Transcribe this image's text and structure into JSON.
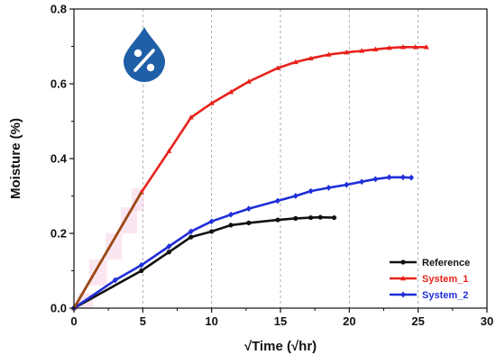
{
  "chart_data": {
    "type": "line",
    "xlabel": "√Time (√hr)",
    "ylabel": "Moisture (%)",
    "xlim": [
      0,
      30
    ],
    "ylim": [
      0,
      0.8
    ],
    "x_ticks": [
      0,
      5,
      10,
      15,
      20,
      25,
      30
    ],
    "x_tick_labels": [
      "0",
      "5",
      "10",
      "15",
      "20",
      "25",
      "30"
    ],
    "y_ticks": [
      0,
      0.2,
      0.4,
      0.6,
      0.8
    ],
    "y_tick_labels": [
      "0.0",
      "0.2",
      "0.4",
      "0.6",
      "0.8"
    ],
    "grid": "vertical dashed at x ticks",
    "legend_position": "bottom-right",
    "icon": "moisture-percent-drop-icon",
    "icon_color": "#1f5fa8",
    "series": [
      {
        "name": "Reference",
        "color": "#111111",
        "marker": "circle",
        "x": [
          0,
          4.9,
          6.9,
          8.5,
          10.0,
          11.4,
          12.7,
          14.8,
          16.1,
          17.2,
          17.9,
          18.9
        ],
        "y": [
          0,
          0.1,
          0.15,
          0.19,
          0.205,
          0.222,
          0.228,
          0.236,
          0.24,
          0.242,
          0.243,
          0.242
        ]
      },
      {
        "name": "System_1",
        "color": "#e8221b",
        "marker": "triangle",
        "x": [
          0,
          4.9,
          6.9,
          8.5,
          10.0,
          11.4,
          12.7,
          14.8,
          16.1,
          17.2,
          18.5,
          19.8,
          20.9,
          21.9,
          22.9,
          23.9,
          24.8,
          25.6
        ],
        "y": [
          0,
          0.31,
          0.42,
          0.51,
          0.548,
          0.578,
          0.606,
          0.642,
          0.658,
          0.668,
          0.678,
          0.684,
          0.688,
          0.692,
          0.696,
          0.698,
          0.698,
          0.698
        ]
      },
      {
        "name": "System_2",
        "color": "#1f2fd8",
        "marker": "diamond",
        "x": [
          0,
          3.0,
          4.9,
          6.9,
          8.5,
          10.0,
          11.4,
          12.7,
          14.8,
          16.1,
          17.2,
          18.5,
          19.8,
          20.9,
          21.9,
          22.9,
          23.9,
          24.5
        ],
        "y": [
          0,
          0.075,
          0.115,
          0.165,
          0.205,
          0.232,
          0.25,
          0.266,
          0.287,
          0.3,
          0.313,
          0.322,
          0.33,
          0.338,
          0.345,
          0.35,
          0.35,
          0.349
        ]
      }
    ]
  }
}
